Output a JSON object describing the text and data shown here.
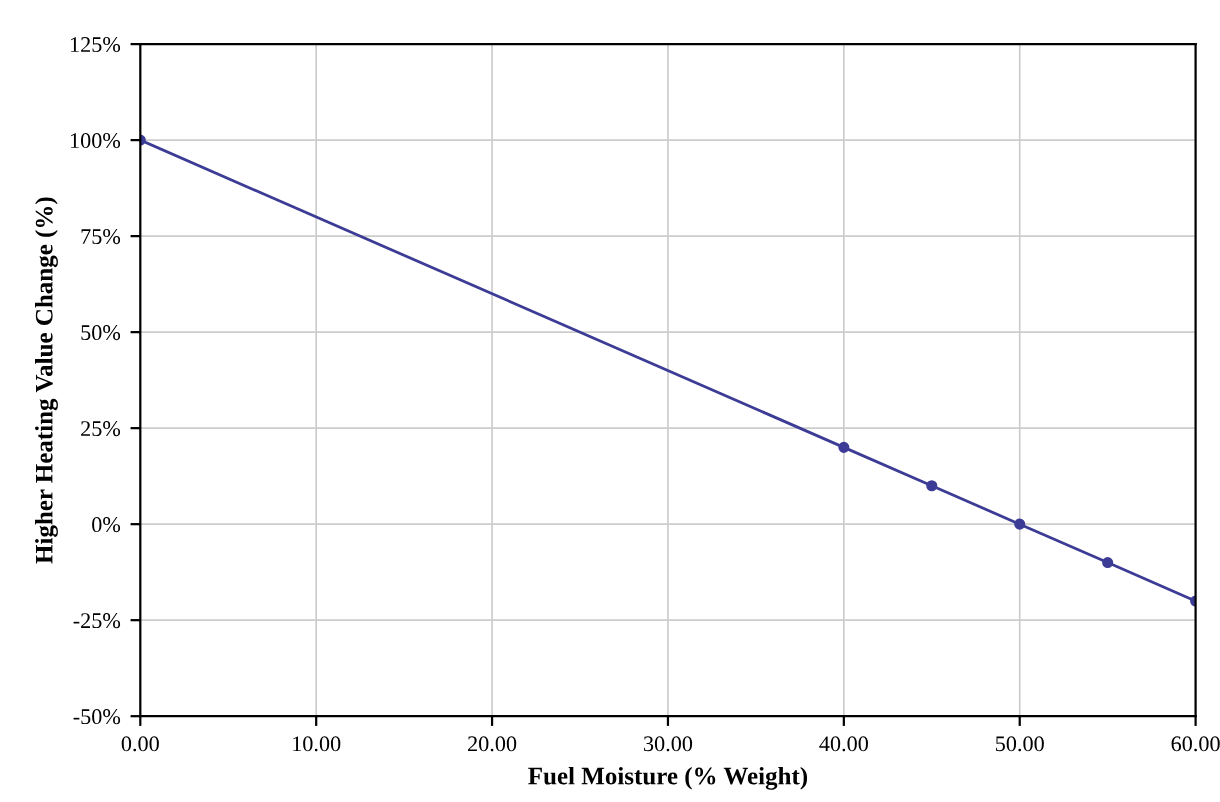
{
  "chart_data": {
    "type": "line",
    "xlabel": "Fuel Moisture (% Weight)",
    "ylabel": "Higher Heating Value Change (%)",
    "x": [
      0,
      40,
      45,
      50,
      55,
      60
    ],
    "series": [
      {
        "color": "#3c3c96",
        "values": [
          100,
          20,
          10,
          0,
          -10,
          -20
        ]
      }
    ],
    "xlim": [
      0,
      60
    ],
    "ylim": [
      -50,
      125
    ],
    "xticks": [
      {
        "value": 0,
        "label": "0.00"
      },
      {
        "value": 10,
        "label": "10.00"
      },
      {
        "value": 20,
        "label": "20.00"
      },
      {
        "value": 30,
        "label": "30.00"
      },
      {
        "value": 40,
        "label": "40.00"
      },
      {
        "value": 50,
        "label": "50.00"
      },
      {
        "value": 60,
        "label": "60.00"
      }
    ],
    "yticks": [
      {
        "value": -50,
        "label": "-50%"
      },
      {
        "value": -25,
        "label": "-25%"
      },
      {
        "value": 0,
        "label": "0%"
      },
      {
        "value": 25,
        "label": "25%"
      },
      {
        "value": 50,
        "label": "50%"
      },
      {
        "value": 75,
        "label": "75%"
      },
      {
        "value": 100,
        "label": "100%"
      },
      {
        "value": 125,
        "label": "125%"
      }
    ],
    "grid": true,
    "marker": "circle",
    "line_style": "solid"
  }
}
